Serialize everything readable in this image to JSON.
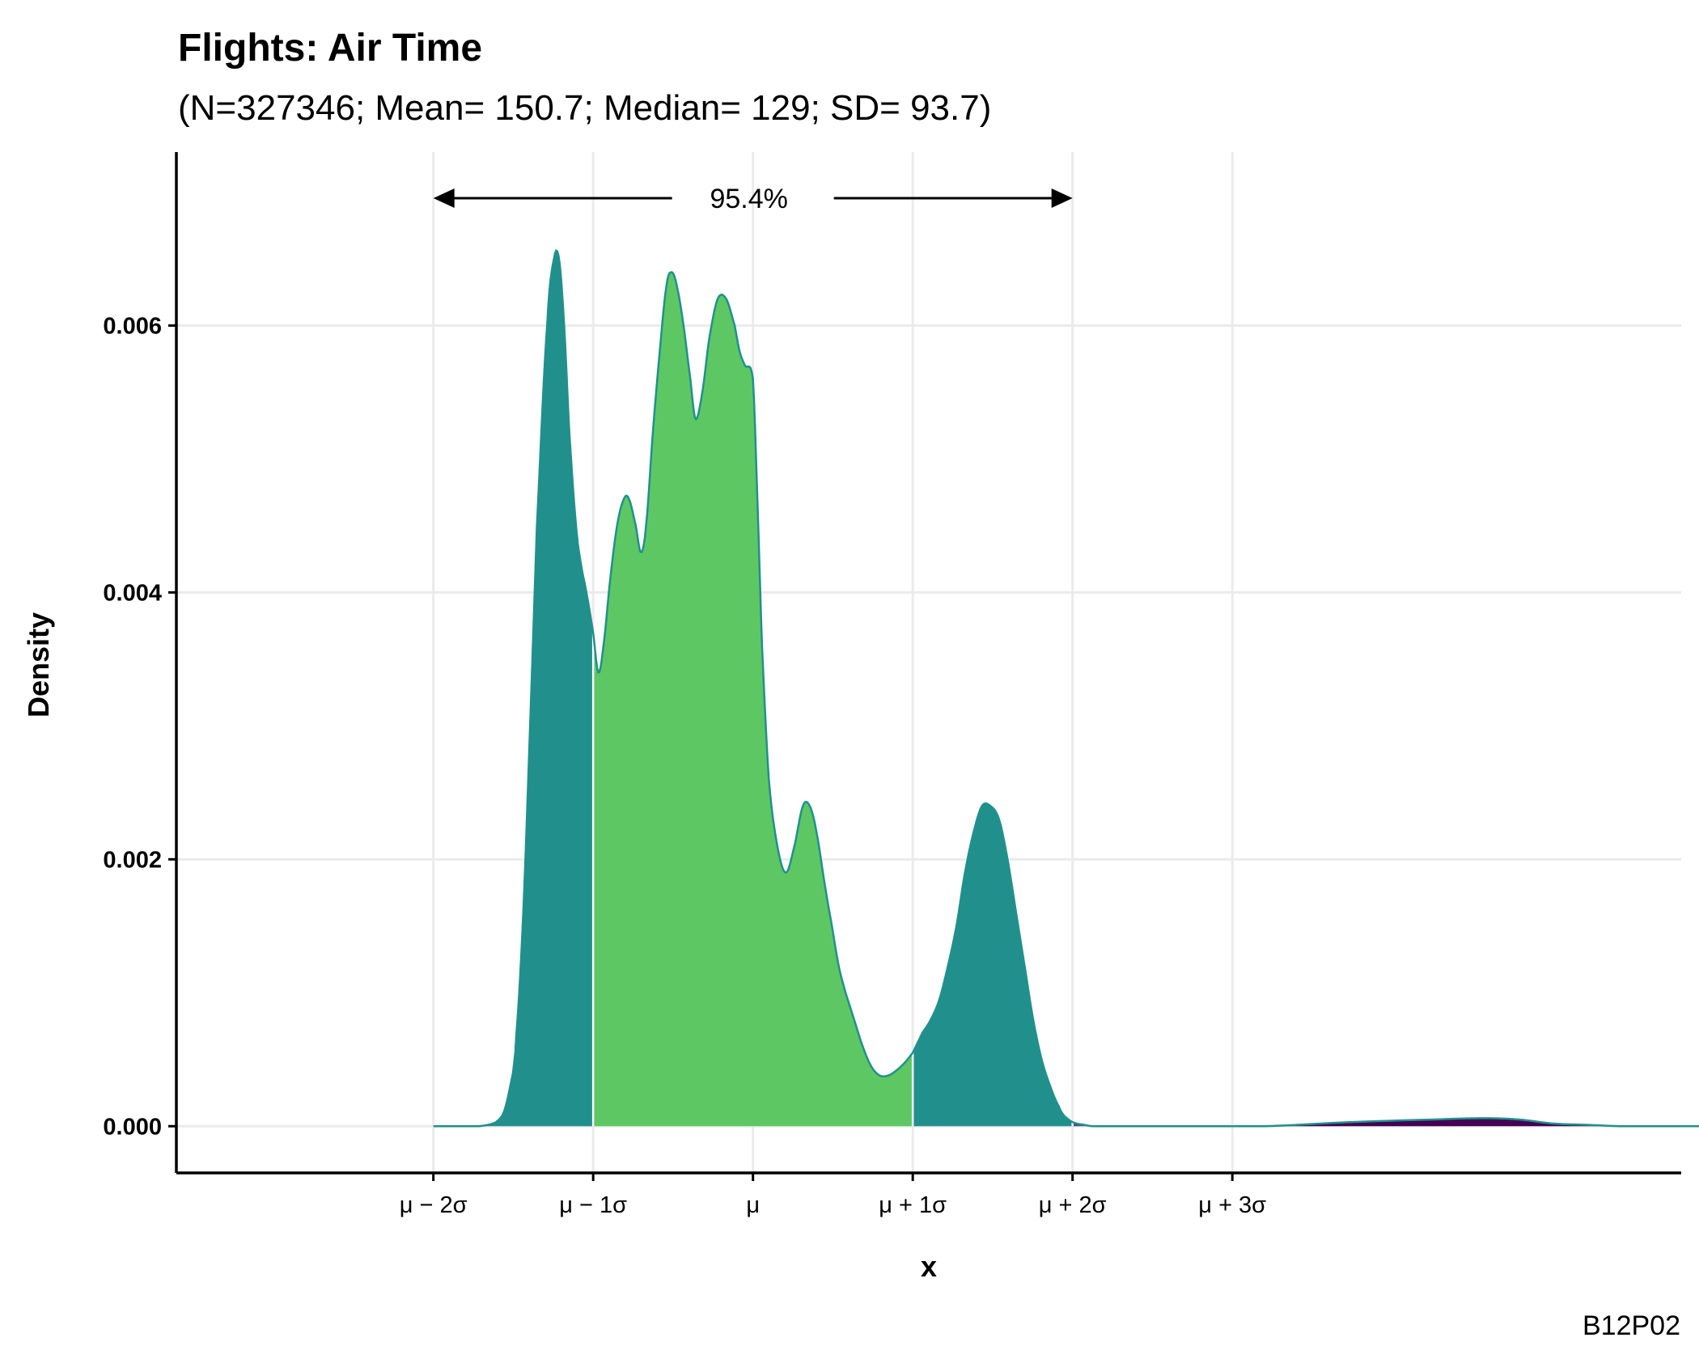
{
  "chart_data": {
    "type": "area",
    "title": "Flights: Air Time",
    "subtitle": "(N=327346; Mean= 150.7; Median= 129; SD= 93.7)",
    "xlabel": "x",
    "ylabel": "Density",
    "caption": "B12P02",
    "stats": {
      "n": 327346,
      "mean": 150.7,
      "median": 129,
      "sd": 93.7
    },
    "xlim": [
      -187.4,
      695
    ],
    "ylim": [
      -0.00035,
      0.0073
    ],
    "x_ticks": [
      {
        "value": -36.7,
        "label": "μ − 2σ"
      },
      {
        "value": 57.0,
        "label": "μ − 1σ"
      },
      {
        "value": 150.7,
        "label": "μ"
      },
      {
        "value": 244.4,
        "label": "μ + 1σ"
      },
      {
        "value": 338.1,
        "label": "μ + 2σ"
      },
      {
        "value": 431.8,
        "label": "μ + 3σ"
      }
    ],
    "y_ticks": [
      {
        "value": 0.0,
        "label": "0.000"
      },
      {
        "value": 0.002,
        "label": "0.002"
      },
      {
        "value": 0.004,
        "label": "0.004"
      },
      {
        "value": 0.006,
        "label": "0.006"
      }
    ],
    "grid": true,
    "annotation": {
      "label": "95.4%",
      "from": -36.7,
      "to": 338.1
    },
    "density": {
      "x": [
        -36.7,
        -10,
        0,
        5,
        10,
        12,
        16,
        20,
        24,
        30,
        34,
        37,
        40,
        43,
        47,
        50,
        53,
        57,
        60,
        63,
        67,
        71,
        75,
        78,
        82,
        85,
        88,
        92,
        96,
        100,
        103,
        106,
        110,
        114,
        117,
        121,
        125,
        130,
        135,
        140,
        143,
        146,
        150.7,
        153,
        156,
        160,
        165,
        170,
        175,
        180,
        184,
        188,
        193,
        197,
        201,
        205,
        210,
        215,
        220,
        225,
        230,
        235,
        240,
        244.4,
        247,
        250,
        255,
        260,
        265,
        270,
        275,
        280,
        285,
        290,
        295,
        300,
        305,
        310,
        315,
        320,
        325,
        330,
        333,
        338.1,
        345,
        350,
        360,
        370,
        380,
        390,
        400,
        410,
        420,
        431.8,
        450,
        500,
        550,
        580,
        600,
        620,
        640,
        660,
        680,
        710
      ],
      "y": [
        0.0,
        0.0,
        3e-05,
        0.00012,
        0.0004,
        0.0007,
        0.0016,
        0.003,
        0.0045,
        0.006,
        0.0065,
        0.0065,
        0.006,
        0.0052,
        0.0045,
        0.0042,
        0.004,
        0.0037,
        0.0034,
        0.0036,
        0.0041,
        0.0045,
        0.0047,
        0.0047,
        0.0045,
        0.0043,
        0.0045,
        0.0052,
        0.0058,
        0.0063,
        0.0064,
        0.0063,
        0.006,
        0.0056,
        0.0053,
        0.0055,
        0.0059,
        0.0062,
        0.0062,
        0.006,
        0.0058,
        0.0057,
        0.0056,
        0.0048,
        0.0036,
        0.0026,
        0.0021,
        0.0019,
        0.0021,
        0.0024,
        0.0024,
        0.0022,
        0.0018,
        0.0015,
        0.0012,
        0.001,
        0.0008,
        0.0006,
        0.00045,
        0.00038,
        0.00038,
        0.00042,
        0.00048,
        0.00055,
        0.00062,
        0.0007,
        0.0008,
        0.00095,
        0.0012,
        0.0015,
        0.0019,
        0.0022,
        0.0024,
        0.0024,
        0.0023,
        0.002,
        0.0016,
        0.0012,
        0.0008,
        0.0005,
        0.0003,
        0.00015,
        8e-05,
        3e-05,
        1e-05,
        0.0,
        0.0,
        0.0,
        0.0,
        0.0,
        0.0,
        0.0,
        0.0,
        0.0,
        0.0,
        3e-05,
        5e-05,
        6e-05,
        5e-05,
        2e-05,
        1e-05,
        0.0,
        0.0,
        0.0
      ]
    },
    "bands": [
      {
        "from": -36.7,
        "to": 57.0,
        "color": "#21908C"
      },
      {
        "from": 57.0,
        "to": 244.4,
        "color": "#5DC863"
      },
      {
        "from": 244.4,
        "to": 338.1,
        "color": "#21908C"
      },
      {
        "from": 338.1,
        "to": 431.8,
        "color": "#3B528B"
      },
      {
        "from": 431.8,
        "to": 710,
        "color": "#440154"
      }
    ],
    "colors": {
      "line": "#21908C",
      "grid": "#EBEBEB",
      "axis": "#000000",
      "band_divider": "#FFFFFF"
    }
  }
}
